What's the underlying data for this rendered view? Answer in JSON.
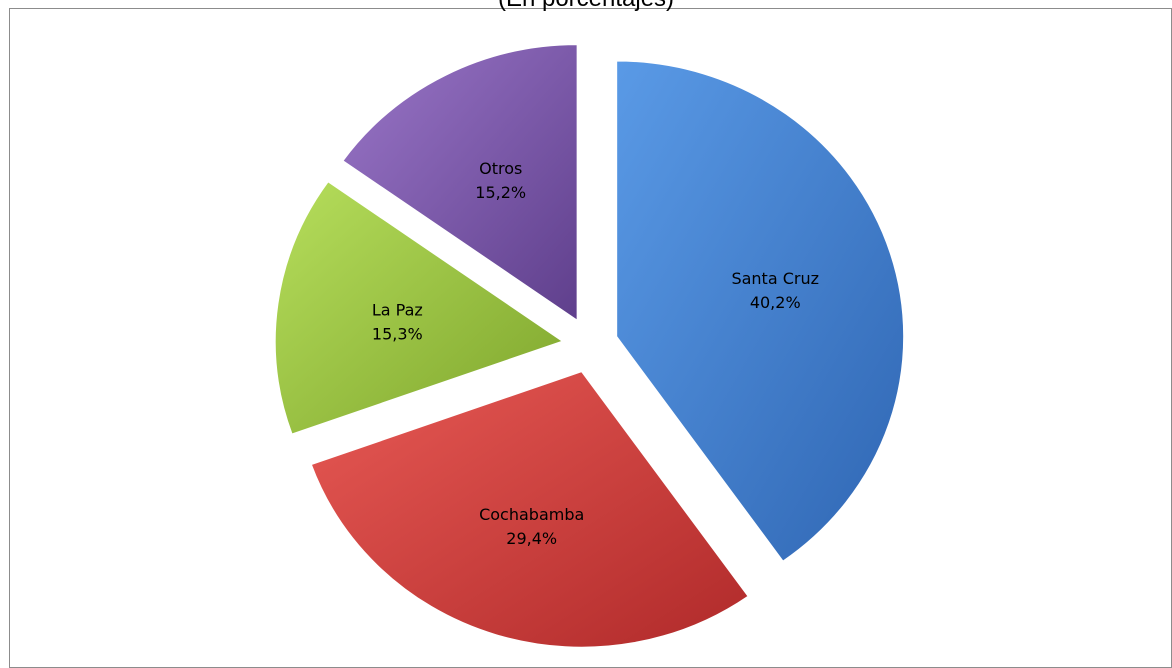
{
  "chart_data": {
    "type": "pie",
    "subtitle": "(En porcentajes)",
    "slices": [
      {
        "label": "Santa Cruz",
        "value_label": "40,2%",
        "value": 40.2,
        "color": "#3f7fd0"
      },
      {
        "label": "Cochabamba",
        "value_label": "29,4%",
        "value": 29.4,
        "color": "#d2403c"
      },
      {
        "label": "La Paz",
        "value_label": "15,3%",
        "value": 15.3,
        "color": "#9bc53d"
      },
      {
        "label": "Otros",
        "value_label": "15,2%",
        "value": 15.2,
        "color": "#7c58aa"
      }
    ],
    "exploded": true,
    "legend": "none"
  }
}
